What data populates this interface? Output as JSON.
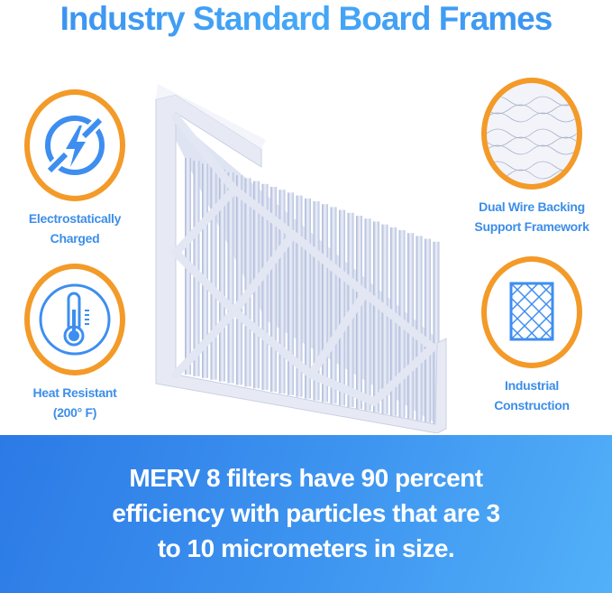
{
  "title": "Industry Standard Board Frames",
  "features": {
    "electrostatic": {
      "line1": "Electrostatically",
      "line2": "Charged",
      "icon": "no-lightning-icon"
    },
    "heat": {
      "line1": "Heat Resistant",
      "line2": "(200° F)",
      "icon": "thermometer-icon"
    },
    "wire": {
      "line1": "Dual Wire Backing",
      "line2": "Support Framework",
      "icon": "wire-mesh-photo"
    },
    "industrial": {
      "line1": "Industrial",
      "line2": "Construction",
      "icon": "diamond-grid-icon"
    }
  },
  "banner": {
    "line1": "MERV 8 filters have 90 percent",
    "line2": "efficiency with particles that are 3",
    "line3": "to 10 micrometers in size."
  },
  "colors": {
    "accent_blue": "#3c8ee9",
    "ring_orange": "#f39a28",
    "banner_start": "#2c7ae6",
    "banner_end": "#52b0f8"
  }
}
